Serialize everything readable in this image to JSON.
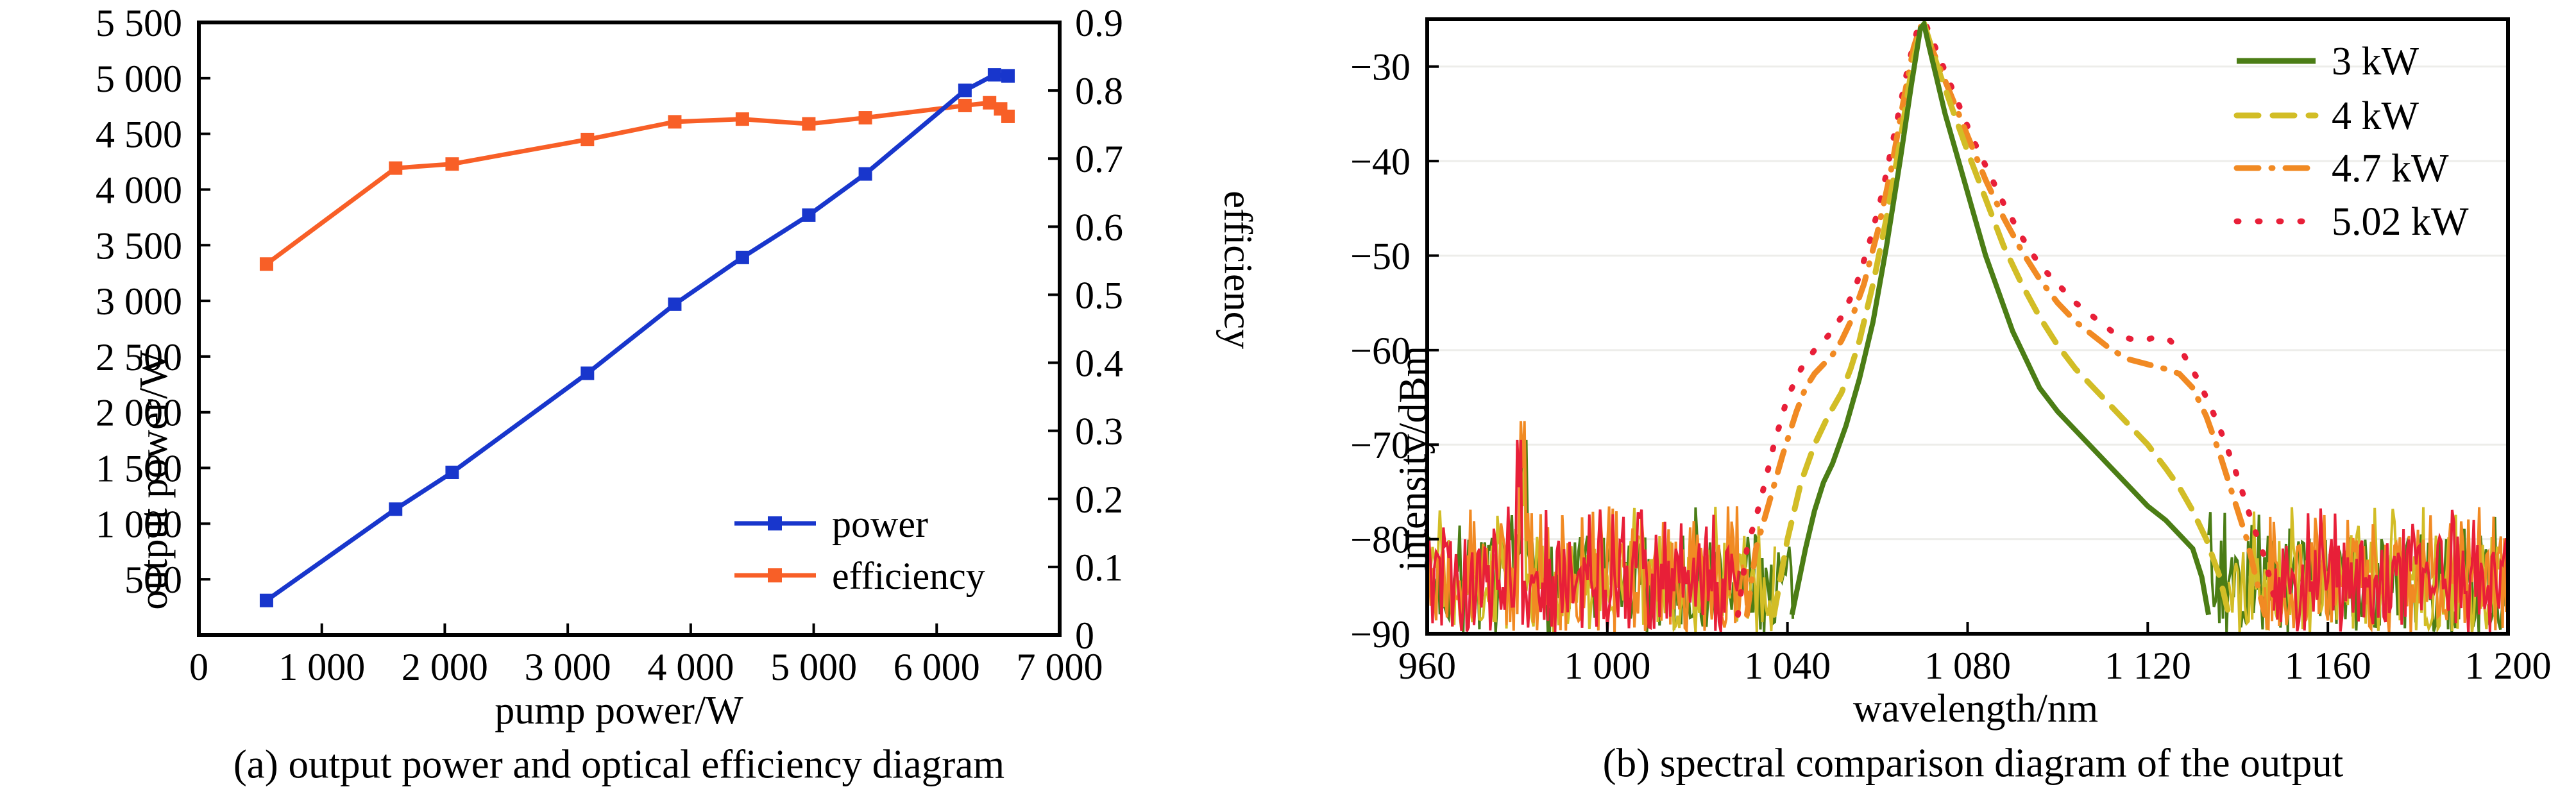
{
  "chart_data": [
    {
      "type": "line",
      "panel": "a",
      "title": "(a) output power and optical efficiency diagram",
      "xlabel": "pump power/W",
      "ylabel": "output power/W",
      "ylabel2": "efficiency",
      "xlim": [
        0,
        7000
      ],
      "ylim": [
        0,
        5500
      ],
      "y2lim": [
        0,
        0.9
      ],
      "grid": false,
      "x_ticks": [
        0,
        1000,
        2000,
        3000,
        4000,
        5000,
        6000,
        7000
      ],
      "x_tick_labels": [
        "0",
        "1 000",
        "2 000",
        "3 000",
        "4 000",
        "5 000",
        "6 000",
        "7 000"
      ],
      "y_ticks": [
        500,
        1000,
        1500,
        2000,
        2500,
        3000,
        3500,
        4000,
        4500,
        5000,
        5500
      ],
      "y_tick_labels": [
        "500",
        "1 000",
        "1 500",
        "2 000",
        "2 500",
        "3 000",
        "3 500",
        "4 000",
        "4 500",
        "5 000",
        "5 500"
      ],
      "y2_ticks": [
        0,
        0.1,
        0.2,
        0.3,
        0.4,
        0.5,
        0.6,
        0.7,
        0.8,
        0.9
      ],
      "y2_tick_labels": [
        "0",
        "0.1",
        "0.2",
        "0.3",
        "0.4",
        "0.5",
        "0.6",
        "0.7",
        "0.8",
        "0.9"
      ],
      "legend_position": "lower right",
      "series": [
        {
          "name": "power",
          "axis": "left",
          "color": "#1836cc",
          "marker": "square",
          "points": [
            [
              550,
              310
            ],
            [
              1600,
              1130
            ],
            [
              2060,
              1460
            ],
            [
              3160,
              2350
            ],
            [
              3870,
              2970
            ],
            [
              4420,
              3390
            ],
            [
              4960,
              3770
            ],
            [
              5420,
              4140
            ],
            [
              6230,
              4890
            ],
            [
              6470,
              5030
            ],
            [
              6580,
              5020
            ]
          ]
        },
        {
          "name": "efficiency",
          "axis": "right",
          "color": "#f85f27",
          "marker": "square",
          "points": [
            [
              550,
              0.545
            ],
            [
              1600,
              0.686
            ],
            [
              2060,
              0.692
            ],
            [
              3160,
              0.728
            ],
            [
              3870,
              0.754
            ],
            [
              4420,
              0.758
            ],
            [
              4960,
              0.751
            ],
            [
              5420,
              0.76
            ],
            [
              6230,
              0.778
            ],
            [
              6430,
              0.782
            ],
            [
              6520,
              0.773
            ],
            [
              6580,
              0.762
            ]
          ]
        }
      ]
    },
    {
      "type": "line",
      "panel": "b",
      "title": "(b) spectral comparison diagram of the output",
      "xlabel": "wavelength/nm",
      "ylabel": "intensity/dBm",
      "xlim": [
        960,
        1200
      ],
      "ylim": [
        -90,
        -25
      ],
      "grid": "horizontal",
      "gridline_color": "#ededea",
      "x_ticks": [
        960,
        1000,
        1040,
        1080,
        1120,
        1160,
        1200
      ],
      "x_tick_labels": [
        "960",
        "1 000",
        "1 040",
        "1 080",
        "1 120",
        "1 160",
        "1 200"
      ],
      "y_ticks": [
        -30,
        -40,
        -50,
        -60,
        -70,
        -80,
        -90
      ],
      "y_tick_labels": [
        "−30",
        "−40",
        "−50",
        "−60",
        "−70",
        "−80",
        "−90"
      ],
      "legend_position": "upper right",
      "noise_floor_dBm": {
        "top": -79,
        "bottom": -90
      },
      "noise_spikes": [
        {
          "series": "4.7 kW",
          "x": 981.0,
          "y": -72.5
        },
        {
          "series": "3 kW",
          "x": 981.8,
          "y": -74.5
        },
        {
          "series": "5.02 kW",
          "x": 980.4,
          "y": -74.5
        },
        {
          "series": "4 kW",
          "x": 981.3,
          "y": -76.5
        }
      ],
      "series": [
        {
          "name": "3 kW",
          "color": "#4b7d15",
          "style": "solid",
          "peak_nm": 1070,
          "noise_ranges": [
            [
              960,
              1041
            ],
            [
              1133.5,
              1200
            ]
          ],
          "points": [
            [
              1041,
              -88
            ],
            [
              1044,
              -81
            ],
            [
              1046,
              -77
            ],
            [
              1048,
              -74
            ],
            [
              1050,
              -72
            ],
            [
              1053,
              -68
            ],
            [
              1056,
              -63
            ],
            [
              1059,
              -57
            ],
            [
              1062,
              -49
            ],
            [
              1065,
              -40
            ],
            [
              1067.5,
              -32
            ],
            [
              1069.5,
              -26
            ],
            [
              1070.3,
              -25.5
            ],
            [
              1071.5,
              -28
            ],
            [
              1073,
              -31
            ],
            [
              1075,
              -35
            ],
            [
              1078,
              -40
            ],
            [
              1081,
              -45
            ],
            [
              1084,
              -50
            ],
            [
              1087,
              -54
            ],
            [
              1090,
              -58
            ],
            [
              1093,
              -61
            ],
            [
              1096,
              -64
            ],
            [
              1100,
              -66.5
            ],
            [
              1104,
              -68.5
            ],
            [
              1108,
              -70.5
            ],
            [
              1112,
              -72.5
            ],
            [
              1116,
              -74.5
            ],
            [
              1120,
              -76.5
            ],
            [
              1124,
              -78
            ],
            [
              1127,
              -79.5
            ],
            [
              1130,
              -81
            ],
            [
              1132,
              -84
            ],
            [
              1133.5,
              -88
            ]
          ]
        },
        {
          "name": "4 kW",
          "color": "#d2bd26",
          "style": "dashed",
          "peak_nm": 1070,
          "noise_ranges": [
            [
              960,
              1037
            ],
            [
              1138,
              1200
            ]
          ],
          "points": [
            [
              1037,
              -88
            ],
            [
              1040,
              -80
            ],
            [
              1043,
              -74
            ],
            [
              1046,
              -70
            ],
            [
              1049,
              -67
            ],
            [
              1052,
              -64.5
            ],
            [
              1054,
              -62
            ],
            [
              1056,
              -59
            ],
            [
              1059,
              -53
            ],
            [
              1062,
              -46
            ],
            [
              1065,
              -38
            ],
            [
              1067.5,
              -30.5
            ],
            [
              1069.5,
              -26
            ],
            [
              1070.5,
              -25.7
            ],
            [
              1072,
              -28
            ],
            [
              1074,
              -31
            ],
            [
              1077,
              -35
            ],
            [
              1080,
              -39
            ],
            [
              1084,
              -44
            ],
            [
              1088,
              -49
            ],
            [
              1092,
              -53
            ],
            [
              1096,
              -56.5
            ],
            [
              1100,
              -59.5
            ],
            [
              1104,
              -62
            ],
            [
              1108,
              -64
            ],
            [
              1112,
              -66
            ],
            [
              1116,
              -68
            ],
            [
              1120,
              -70
            ],
            [
              1124,
              -72.5
            ],
            [
              1127,
              -74.5
            ],
            [
              1130,
              -77
            ],
            [
              1133,
              -80
            ],
            [
              1136,
              -84
            ],
            [
              1138,
              -88
            ]
          ]
        },
        {
          "name": "4.7 kW",
          "color": "#f18a23",
          "style": "dashdot",
          "peak_nm": 1070,
          "noise_ranges": [
            [
              960,
              1031
            ],
            [
              1146,
              1200
            ]
          ],
          "points": [
            [
              1031,
              -88
            ],
            [
              1033,
              -81
            ],
            [
              1036,
              -76
            ],
            [
              1039,
              -71
            ],
            [
              1042,
              -66.5
            ],
            [
              1044,
              -64
            ],
            [
              1046,
              -62.5
            ],
            [
              1048,
              -61.5
            ],
            [
              1050,
              -60.5
            ],
            [
              1052,
              -59
            ],
            [
              1054,
              -57
            ],
            [
              1057,
              -53
            ],
            [
              1060,
              -47.5
            ],
            [
              1063,
              -41
            ],
            [
              1066,
              -33
            ],
            [
              1068,
              -28
            ],
            [
              1069.5,
              -25.8
            ],
            [
              1070.5,
              -25.8
            ],
            [
              1072,
              -28
            ],
            [
              1075,
              -31.5
            ],
            [
              1078,
              -35
            ],
            [
              1081,
              -38.5
            ],
            [
              1084,
              -42
            ],
            [
              1088,
              -46
            ],
            [
              1092,
              -49.5
            ],
            [
              1096,
              -52.5
            ],
            [
              1100,
              -55
            ],
            [
              1104,
              -57
            ],
            [
              1108,
              -58.5
            ],
            [
              1112,
              -60
            ],
            [
              1116,
              -61
            ],
            [
              1120,
              -61.5
            ],
            [
              1124,
              -62
            ],
            [
              1127,
              -62.5
            ],
            [
              1130,
              -64
            ],
            [
              1133,
              -67
            ],
            [
              1136,
              -71
            ],
            [
              1139,
              -75.5
            ],
            [
              1142,
              -80
            ],
            [
              1144,
              -84
            ],
            [
              1146,
              -88
            ]
          ]
        },
        {
          "name": "5.02 kW",
          "color": "#e81f38",
          "style": "dotted",
          "peak_nm": 1070,
          "noise_ranges": [
            [
              960,
              1029
            ],
            [
              1148,
              1200
            ]
          ],
          "points": [
            [
              1029,
              -88
            ],
            [
              1031,
              -81
            ],
            [
              1034,
              -76
            ],
            [
              1037,
              -70
            ],
            [
              1040,
              -65
            ],
            [
              1043,
              -62
            ],
            [
              1046,
              -60
            ],
            [
              1049,
              -58.5
            ],
            [
              1052,
              -56.5
            ],
            [
              1055,
              -53.5
            ],
            [
              1058,
              -49
            ],
            [
              1061,
              -43.5
            ],
            [
              1064,
              -36.5
            ],
            [
              1067,
              -29.5
            ],
            [
              1069,
              -25.8
            ],
            [
              1070.5,
              -25.3
            ],
            [
              1072,
              -27
            ],
            [
              1075,
              -30.5
            ],
            [
              1078,
              -34
            ],
            [
              1081,
              -37.5
            ],
            [
              1084,
              -40.5
            ],
            [
              1088,
              -44.5
            ],
            [
              1092,
              -48
            ],
            [
              1096,
              -51
            ],
            [
              1100,
              -53
            ],
            [
              1104,
              -55
            ],
            [
              1108,
              -56.5
            ],
            [
              1112,
              -58
            ],
            [
              1116,
              -58.8
            ],
            [
              1119,
              -59
            ],
            [
              1122,
              -58.6
            ],
            [
              1125,
              -59
            ],
            [
              1128,
              -60.5
            ],
            [
              1131,
              -63
            ],
            [
              1134,
              -66
            ],
            [
              1137,
              -69.5
            ],
            [
              1140,
              -73.5
            ],
            [
              1143,
              -78
            ],
            [
              1146,
              -82
            ],
            [
              1148,
              -86
            ]
          ]
        }
      ]
    }
  ]
}
